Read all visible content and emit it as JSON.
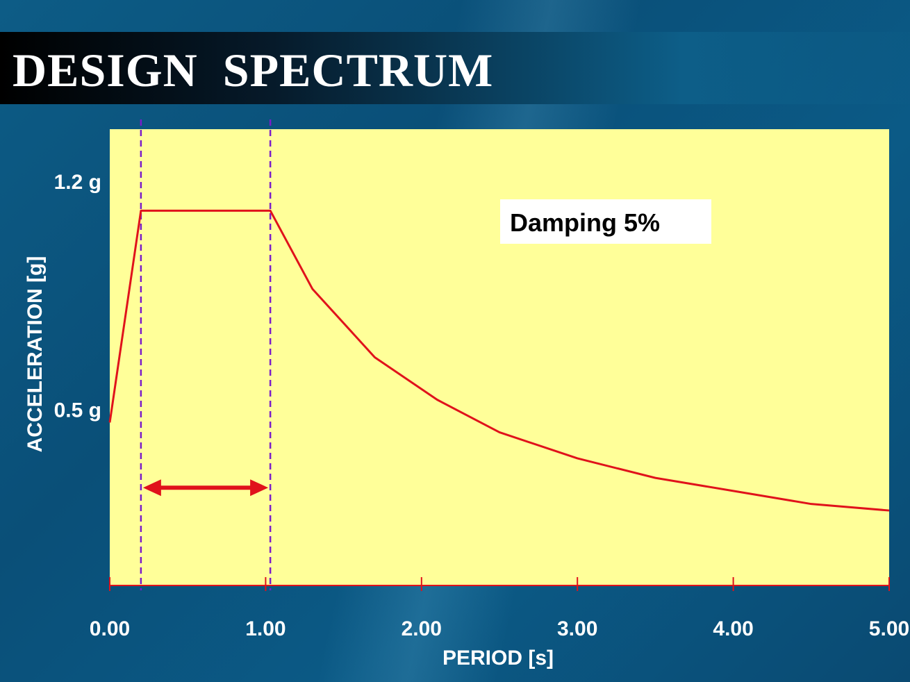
{
  "slide": {
    "title": "DESIGN  SPECTRUM"
  },
  "chart_data": {
    "type": "line",
    "title": "",
    "xlabel": "PERIOD [s]",
    "ylabel": "ACCELERATION   [g]",
    "xlim": [
      0,
      5
    ],
    "ylim": [
      0,
      1.4
    ],
    "x_ticks": [
      0,
      1,
      2,
      3,
      4,
      5
    ],
    "x_tick_labels": [
      "0.00",
      "1.00",
      "2.00",
      "3.00",
      "4.00",
      "5.00"
    ],
    "y_tick_labels": [
      {
        "value": 1.2,
        "label": "1.2 g"
      },
      {
        "value": 0.5,
        "label": "0.5 g"
      }
    ],
    "series": [
      {
        "x": [
          0,
          0.2,
          1.03,
          1.3,
          1.7,
          2.1,
          2.5,
          3.0,
          3.5,
          4.0,
          4.5,
          5.0
        ],
        "values": [
          0.5,
          1.15,
          1.15,
          0.91,
          0.7,
          0.57,
          0.47,
          0.39,
          0.33,
          0.29,
          0.25,
          0.23
        ]
      }
    ],
    "vlines": [
      0.2,
      1.03
    ],
    "range_arrow": {
      "from": 0.2,
      "to": 1.03,
      "y": 0.3
    },
    "annotation": "Damping 5%",
    "grid": false,
    "colors": {
      "background": "#0b5a86",
      "plot_area": "#ffff99",
      "series": "#e0121b",
      "vlines": "#7a1cc9",
      "text": "#ffffff"
    }
  }
}
